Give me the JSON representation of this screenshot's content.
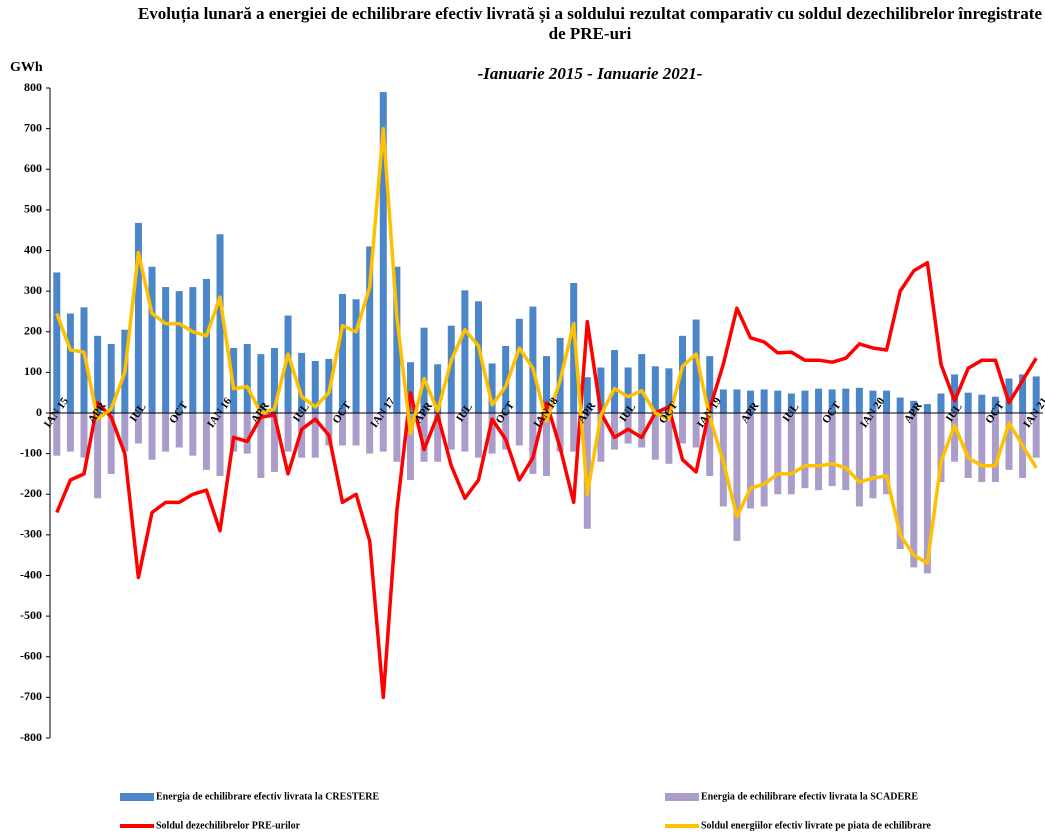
{
  "chart_data": {
    "type": "bar-line",
    "title": "Evoluția lunară a energiei de echilibrare efectiv livrată și a soldului rezultat comparativ cu soldul dezechilibrelor înregistrate de PRE-uri",
    "subtitle": "-Ianuarie 2015 - Ianuarie 2021-",
    "y_label": "GWh",
    "categories": [
      "IAN 15",
      null,
      null,
      "APR",
      null,
      null,
      "IUL",
      null,
      null,
      "OCT",
      null,
      null,
      "IAN 16",
      null,
      null,
      "APR",
      null,
      null,
      "IUL",
      null,
      null,
      "OCT",
      null,
      null,
      "IAN 17",
      null,
      null,
      "APR",
      null,
      null,
      "IUL",
      null,
      null,
      "OCT",
      null,
      null,
      "IAN 18",
      null,
      null,
      "APR",
      null,
      null,
      "IUL",
      null,
      null,
      "OCT",
      null,
      null,
      "IAN 19",
      null,
      null,
      "APR",
      null,
      null,
      "IUL",
      null,
      null,
      "OCT",
      null,
      null,
      "IAN 20",
      null,
      null,
      "APR",
      null,
      null,
      "IUL",
      null,
      null,
      "OCT",
      null,
      null,
      "IAN 21"
    ],
    "ylim": [
      -800,
      800
    ],
    "yticks": [
      -800,
      -700,
      -600,
      -500,
      -400,
      -300,
      -200,
      -100,
      0,
      100,
      200,
      300,
      400,
      500,
      600,
      700,
      800
    ],
    "series": [
      {
        "name": "Energia de echilibrare efectiv livrata la CRESTERE",
        "kind": "bar",
        "color": "#4a86c8",
        "values": [
          346,
          245,
          260,
          190,
          170,
          205,
          468,
          360,
          310,
          300,
          310,
          330,
          440,
          160,
          170,
          145,
          160,
          240,
          148,
          128,
          133,
          293,
          280,
          410,
          790,
          360,
          125,
          210,
          120,
          215,
          302,
          275,
          122,
          165,
          232,
          262,
          140,
          185,
          320,
          88,
          112,
          155,
          112,
          145,
          115,
          110,
          190,
          230,
          140,
          58,
          58,
          55,
          58,
          55,
          48,
          55,
          60,
          58,
          60,
          62,
          55,
          55,
          38,
          30,
          22,
          48,
          95,
          50,
          45,
          40,
          85,
          95,
          90
        ]
      },
      {
        "name": "Energia de echilibrare efectiv livrata la SCADERE",
        "kind": "bar",
        "color": "#ab9dc9",
        "values": [
          -105,
          -95,
          -110,
          -210,
          -150,
          -95,
          -75,
          -115,
          -95,
          -85,
          -105,
          -140,
          -155,
          -95,
          -100,
          -160,
          -145,
          -95,
          -110,
          -110,
          -80,
          -80,
          -80,
          -100,
          -95,
          -120,
          -165,
          -120,
          -120,
          -90,
          -95,
          -110,
          -100,
          -90,
          -80,
          -150,
          -155,
          -95,
          -95,
          -285,
          -120,
          -90,
          -75,
          -85,
          -115,
          -125,
          -75,
          -85,
          -155,
          -230,
          -315,
          -235,
          -230,
          -200,
          -200,
          -185,
          -190,
          -180,
          -190,
          -230,
          -210,
          -200,
          -335,
          -380,
          -395,
          -170,
          -120,
          -160,
          -170,
          -170,
          -140,
          -160,
          -110
        ]
      },
      {
        "name": "Soldul dezechilibrelor PRE-urilor",
        "kind": "line",
        "color": "#ff0000",
        "values": [
          -245,
          -165,
          -150,
          25,
          -10,
          -100,
          -405,
          -245,
          -220,
          -220,
          -200,
          -190,
          -290,
          -60,
          -70,
          -10,
          -5,
          -150,
          -40,
          -15,
          -55,
          -220,
          -200,
          -315,
          -700,
          -240,
          50,
          -90,
          -5,
          -130,
          -210,
          -165,
          -15,
          -65,
          -165,
          -110,
          25,
          -85,
          -220,
          225,
          0,
          -60,
          -40,
          -60,
          0,
          15,
          -115,
          -145,
          10,
          120,
          258,
          185,
          175,
          148,
          150,
          130,
          130,
          125,
          135,
          170,
          160,
          155,
          300,
          350,
          370,
          120,
          30,
          110,
          130,
          130,
          25,
          80,
          135
        ]
      },
      {
        "name": "Soldul energiilor efectiv livrate pe piata de echilibrare",
        "kind": "line",
        "color": "#ffc000",
        "values": [
          245,
          155,
          150,
          -15,
          10,
          100,
          395,
          245,
          220,
          220,
          200,
          190,
          285,
          60,
          65,
          0,
          10,
          145,
          40,
          15,
          50,
          215,
          200,
          310,
          700,
          235,
          -50,
          85,
          5,
          130,
          205,
          165,
          20,
          65,
          160,
          110,
          -20,
          80,
          220,
          -200,
          -5,
          60,
          40,
          55,
          0,
          -15,
          115,
          145,
          -10,
          -120,
          -255,
          -185,
          -175,
          -150,
          -150,
          -130,
          -130,
          -125,
          -135,
          -170,
          -160,
          -155,
          -300,
          -350,
          -370,
          -120,
          -30,
          -110,
          -130,
          -130,
          -25,
          -80,
          -135
        ]
      }
    ]
  }
}
